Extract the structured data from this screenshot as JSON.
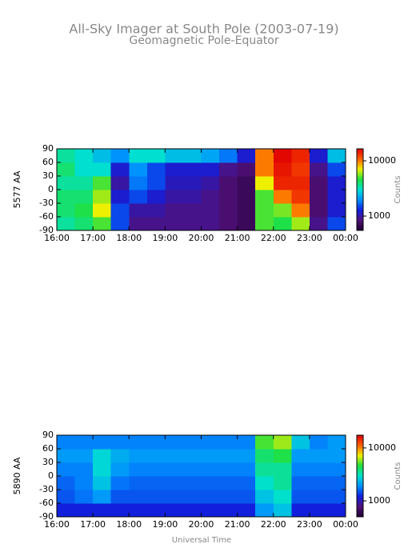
{
  "title": "All-Sky Imager at South Pole (2003-07-19)",
  "subtitle": "Geomagnetic Pole-Equator",
  "xlabel": "Universal Time",
  "colormap": [
    "#200030",
    "#50107a",
    "#1020e0",
    "#0090ff",
    "#00e0d0",
    "#20e040",
    "#f0f000",
    "#ff6000",
    "#e00000"
  ],
  "chart_data": [
    {
      "type": "heatmap",
      "ylabel": "5577 AA",
      "colorbar_label": "Counts",
      "color_scale": "log",
      "clim": [
        550,
        16500
      ],
      "cticks": [
        1000,
        10000
      ],
      "x_edges": [
        16,
        16.5,
        17,
        17.5,
        18,
        18.5,
        19,
        19.5,
        20,
        20.5,
        21,
        21.5,
        22,
        22.5,
        23,
        23.5,
        24
      ],
      "y_edges": [
        -90,
        -60,
        -30,
        0,
        30,
        60,
        90
      ],
      "xlim": [
        16,
        24
      ],
      "xticks": [
        {
          "value": 16,
          "label": "16:00"
        },
        {
          "value": 17,
          "label": "17:00"
        },
        {
          "value": 18,
          "label": "18:00"
        },
        {
          "value": 19,
          "label": "19:00"
        },
        {
          "value": 20,
          "label": "20:00"
        },
        {
          "value": 21,
          "label": "21:00"
        },
        {
          "value": 22,
          "label": "22:00"
        },
        {
          "value": 23,
          "label": "23:00"
        },
        {
          "value": 24,
          "label": "00:00"
        }
      ],
      "ylim": [
        -90,
        90
      ],
      "yticks": [
        -90,
        -60,
        -30,
        0,
        30,
        60,
        90
      ],
      "z": [
        [
          3500,
          4000,
          5000,
          1500,
          900,
          900,
          900,
          900,
          900,
          800,
          700,
          5000,
          4500,
          6000,
          900,
          1500
        ],
        [
          4000,
          4500,
          7000,
          1500,
          1000,
          1000,
          900,
          900,
          900,
          800,
          700,
          5000,
          5500,
          10000,
          800,
          1200
        ],
        [
          4000,
          4000,
          6000,
          1200,
          1500,
          1200,
          1000,
          1000,
          900,
          800,
          700,
          5000,
          10000,
          13000,
          800,
          1200
        ],
        [
          3500,
          3500,
          5000,
          1000,
          1800,
          1500,
          1100,
          1100,
          1000,
          800,
          700,
          7000,
          14000,
          14000,
          800,
          1200
        ],
        [
          4000,
          3000,
          3000,
          1200,
          2000,
          1500,
          1200,
          1200,
          1200,
          900,
          800,
          10000,
          15000,
          13000,
          900,
          1500
        ],
        [
          3500,
          3000,
          2500,
          2000,
          3000,
          3000,
          2500,
          2500,
          2200,
          1800,
          1200,
          10000,
          16000,
          14000,
          1200,
          2500
        ]
      ]
    },
    {
      "type": "heatmap",
      "ylabel": "5890 AA",
      "colorbar_label": "Counts",
      "color_scale": "log",
      "clim": [
        500,
        17400
      ],
      "cticks": [
        1000,
        10000
      ],
      "x_edges": [
        16,
        16.5,
        17,
        17.5,
        18,
        18.5,
        19,
        19.5,
        20,
        20.5,
        21,
        21.5,
        22,
        22.5,
        23,
        23.5,
        24
      ],
      "y_edges": [
        -90,
        -60,
        -30,
        0,
        30,
        60,
        90
      ],
      "xlim": [
        16,
        24
      ],
      "xticks": [
        {
          "value": 16,
          "label": "16:00"
        },
        {
          "value": 17,
          "label": "17:00"
        },
        {
          "value": 18,
          "label": "18:00"
        },
        {
          "value": 19,
          "label": "19:00"
        },
        {
          "value": 20,
          "label": "20:00"
        },
        {
          "value": 21,
          "label": "21:00"
        },
        {
          "value": 22,
          "label": "22:00"
        },
        {
          "value": 23,
          "label": "23:00"
        },
        {
          "value": 24,
          "label": "00:00"
        }
      ],
      "ylim": [
        -90,
        90
      ],
      "yticks": [
        -90,
        -60,
        -30,
        0,
        30,
        60,
        90
      ],
      "z": [
        [
          1200,
          1200,
          1200,
          1200,
          1200,
          1200,
          1200,
          1200,
          1200,
          1200,
          1200,
          2000,
          2500,
          1200,
          1200,
          1200
        ],
        [
          1500,
          1700,
          2000,
          1500,
          1500,
          1500,
          1500,
          1500,
          1500,
          1500,
          1500,
          2500,
          3000,
          1500,
          1500,
          1500
        ],
        [
          1600,
          1800,
          2500,
          1700,
          1600,
          1600,
          1600,
          1600,
          1600,
          1600,
          1600,
          3000,
          3500,
          1600,
          1600,
          1600
        ],
        [
          1800,
          1800,
          2800,
          2000,
          1800,
          1800,
          1800,
          1800,
          1800,
          1800,
          1800,
          3500,
          3500,
          1800,
          1800,
          1800
        ],
        [
          2000,
          2000,
          2800,
          2200,
          2000,
          2000,
          2000,
          2000,
          2000,
          2000,
          2000,
          4000,
          4500,
          2000,
          2000,
          2000
        ],
        [
          1800,
          1800,
          1800,
          1800,
          1800,
          1800,
          1800,
          1800,
          1800,
          1800,
          1800,
          5000,
          6000,
          2500,
          1800,
          2000
        ]
      ]
    }
  ]
}
